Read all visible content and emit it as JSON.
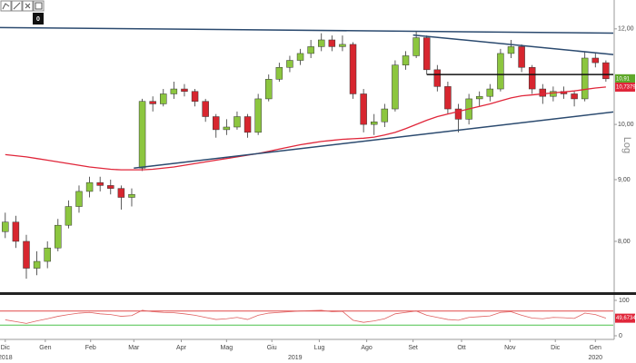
{
  "toolbar": {
    "label": "0"
  },
  "chart_data": {
    "type": "candlestick",
    "log": true,
    "axis_label": "Log",
    "xlim": [
      -0.5,
      57.7
    ],
    "xticks": [
      {
        "value": 0,
        "label": "Dic"
      },
      {
        "value": 3.8,
        "label": "Gen"
      },
      {
        "value": 8.1,
        "label": "Feb"
      },
      {
        "value": 12.2,
        "label": "Mar"
      },
      {
        "value": 16.7,
        "label": "Apr"
      },
      {
        "value": 21,
        "label": "Mag"
      },
      {
        "value": 25.3,
        "label": "Giu"
      },
      {
        "value": 29.8,
        "label": "Lug"
      },
      {
        "value": 34.3,
        "label": "Ago"
      },
      {
        "value": 38.7,
        "label": "Set"
      },
      {
        "value": 43.3,
        "label": "Ott"
      },
      {
        "value": 47.9,
        "label": "Nov"
      },
      {
        "value": 52.2,
        "label": "Dic"
      },
      {
        "value": 56,
        "label": "Gen"
      }
    ],
    "years": [
      {
        "value": 0,
        "label": "2018"
      },
      {
        "value": 27.5,
        "label": "2019"
      },
      {
        "value": 56,
        "label": "2020"
      }
    ],
    "ylim": [
      7.26,
      12.68
    ],
    "yticks": [
      {
        "value": 8,
        "label": "8,00"
      },
      {
        "value": 9,
        "label": "9,00"
      },
      {
        "value": 10,
        "label": "10,00"
      },
      {
        "value": 12,
        "label": "12,00"
      }
    ],
    "up_color": "#8cc63f",
    "down_color": "#d7262f",
    "candles": {
      "open": [
        8.15,
        8.3,
        8.0,
        7.6,
        7.7,
        7.9,
        8.25,
        8.55,
        8.8,
        8.95,
        8.9,
        8.85,
        8.7,
        9.2,
        10.45,
        10.4,
        10.6,
        10.7,
        10.65,
        10.45,
        10.15,
        9.9,
        9.95,
        10.15,
        9.85,
        10.5,
        10.9,
        11.15,
        11.3,
        11.45,
        11.6,
        11.75,
        11.6,
        11.65,
        10.6,
        10.0,
        10.05,
        10.3,
        11.2,
        11.4,
        11.8,
        11.1,
        10.75,
        10.3,
        10.1,
        10.5,
        10.55,
        10.7,
        11.45,
        11.6,
        11.15,
        10.7,
        10.55,
        10.65,
        10.6,
        10.5,
        11.35,
        11.25
      ],
      "high": [
        8.45,
        8.4,
        8.1,
        7.85,
        8.0,
        8.35,
        8.65,
        8.9,
        9.05,
        9.05,
        9.0,
        8.9,
        8.85,
        10.5,
        10.55,
        10.7,
        10.85,
        10.8,
        10.7,
        10.5,
        10.2,
        10.1,
        10.25,
        10.2,
        10.6,
        11.0,
        11.25,
        11.4,
        11.55,
        11.75,
        11.9,
        11.85,
        11.85,
        11.7,
        10.7,
        10.2,
        10.4,
        11.3,
        11.5,
        11.95,
        11.85,
        11.2,
        10.85,
        10.4,
        10.6,
        10.65,
        10.8,
        11.55,
        11.75,
        11.65,
        11.2,
        10.8,
        10.75,
        10.75,
        10.65,
        11.5,
        11.45,
        11.3
      ],
      "low": [
        8.05,
        7.9,
        7.45,
        7.5,
        7.6,
        7.85,
        8.2,
        8.45,
        8.7,
        8.8,
        8.75,
        8.5,
        8.55,
        9.15,
        10.25,
        10.35,
        10.5,
        10.55,
        10.35,
        10.05,
        9.75,
        9.8,
        9.9,
        9.75,
        9.8,
        10.45,
        10.85,
        11.05,
        11.2,
        11.35,
        11.5,
        11.5,
        11.5,
        10.5,
        9.85,
        9.8,
        9.95,
        10.25,
        11.1,
        11.35,
        11.0,
        10.65,
        10.2,
        9.85,
        10.0,
        10.35,
        10.45,
        10.65,
        11.35,
        11.05,
        10.6,
        10.4,
        10.45,
        10.5,
        10.35,
        10.45,
        11.15,
        10.85
      ],
      "close": [
        8.3,
        8.0,
        7.6,
        7.7,
        7.9,
        8.25,
        8.55,
        8.8,
        8.95,
        8.9,
        8.85,
        8.7,
        8.75,
        10.45,
        10.4,
        10.6,
        10.7,
        10.65,
        10.45,
        10.15,
        9.9,
        9.95,
        10.15,
        9.85,
        10.5,
        10.9,
        11.15,
        11.3,
        11.45,
        11.6,
        11.75,
        11.6,
        11.65,
        10.6,
        10.0,
        10.05,
        10.3,
        11.2,
        11.4,
        11.8,
        11.1,
        10.75,
        10.3,
        10.1,
        10.5,
        10.55,
        10.7,
        11.45,
        11.6,
        11.15,
        10.7,
        10.55,
        10.65,
        10.6,
        10.5,
        11.35,
        11.25,
        10.91
      ]
    },
    "moving_average": {
      "color": "#e0263a",
      "values": [
        9.44,
        9.42,
        9.4,
        9.37,
        9.34,
        9.31,
        9.28,
        9.25,
        9.22,
        9.2,
        9.18,
        9.17,
        9.17,
        9.17,
        9.18,
        9.2,
        9.22,
        9.25,
        9.28,
        9.31,
        9.34,
        9.37,
        9.4,
        9.43,
        9.46,
        9.5,
        9.54,
        9.58,
        9.62,
        9.65,
        9.68,
        9.7,
        9.72,
        9.73,
        9.74,
        9.76,
        9.8,
        9.85,
        9.92,
        10.0,
        10.08,
        10.15,
        10.2,
        10.25,
        10.3,
        10.35,
        10.4,
        10.46,
        10.52,
        10.56,
        10.58,
        10.6,
        10.62,
        10.64,
        10.66,
        10.69,
        10.72,
        10.74
      ]
    },
    "price_tags": [
      {
        "value": 10.91,
        "label": "10,91",
        "color": "#5fa82a"
      },
      {
        "value": 10.7379,
        "label": "10,7379",
        "color": "#e0263a"
      }
    ],
    "trendlines": [
      {
        "from": [
          -0.5,
          12.03
        ],
        "to": [
          59.8,
          11.9
        ],
        "color": "#2b4a6f"
      },
      {
        "from": [
          38.7,
          11.86
        ],
        "to": [
          59.8,
          11.38
        ],
        "color": "#2b4a6f"
      },
      {
        "from": [
          40,
          11.0
        ],
        "to": [
          58.1,
          11.0
        ],
        "color": "#111111"
      },
      {
        "from": [
          12.2,
          9.2
        ],
        "to": [
          58.1,
          10.25
        ],
        "color": "#2b4a6f"
      }
    ],
    "rsi": {
      "color": "#e06060",
      "ylim": [
        0,
        100
      ],
      "yticks": [
        0,
        100
      ],
      "levels": [
        {
          "value": 70,
          "color": "#e04848"
        },
        {
          "value": 30,
          "color": "#4cc24c"
        }
      ],
      "tag": {
        "value": 49.6734,
        "label": "49,6734",
        "color": "#e0263a"
      },
      "values": [
        45,
        40,
        35,
        42,
        48,
        55,
        60,
        64,
        66,
        62,
        60,
        55,
        57,
        72,
        68,
        66,
        65,
        62,
        58,
        52,
        46,
        48,
        52,
        46,
        58,
        64,
        66,
        68,
        70,
        71,
        72,
        68,
        69,
        44,
        38,
        42,
        48,
        62,
        66,
        70,
        58,
        52,
        46,
        44,
        52,
        54,
        56,
        66,
        68,
        58,
        50,
        48,
        52,
        51,
        49,
        64,
        60,
        49.6734
      ]
    }
  }
}
